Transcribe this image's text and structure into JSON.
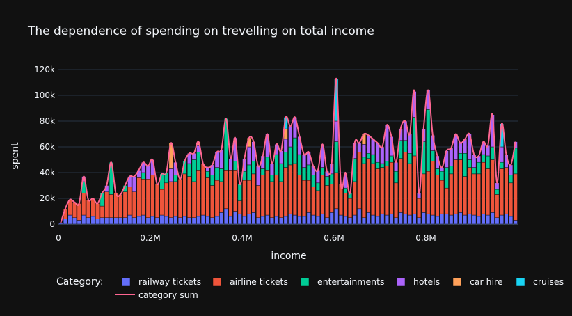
{
  "chart_data": {
    "type": "bar",
    "stacked": true,
    "title": "The dependence of spending on trevelling on total income",
    "xlabel": "income",
    "ylabel": "spent",
    "xlim": [
      0,
      1000000
    ],
    "ylim": [
      0,
      120000
    ],
    "xticks": [
      0,
      200000,
      400000,
      600000,
      800000
    ],
    "xtick_labels": [
      "0",
      "0.2M",
      "0.4M",
      "0.6M",
      "0.8M"
    ],
    "yticks": [
      0,
      20000,
      40000,
      60000,
      80000,
      100000,
      120000
    ],
    "ytick_labels": [
      "0",
      "20k",
      "40k",
      "60k",
      "80k",
      "100k",
      "120k"
    ],
    "grid": "horizontal",
    "legend": {
      "title": "Category:",
      "placement": "bottom",
      "entries": [
        "railway tickets",
        "airline tickets",
        "entertainments",
        "hotels",
        "car hire",
        "cruises",
        "category sum"
      ]
    },
    "colors": {
      "railway tickets": "#636efa",
      "airline tickets": "#ef553b",
      "entertainments": "#00cc96",
      "hotels": "#ab63fa",
      "car hire": "#ffa15a",
      "cruises": "#19d3f3",
      "category sum": "#ff6692"
    },
    "bar_width": 10000,
    "x": [
      0,
      10000,
      20000,
      30000,
      40000,
      50000,
      60000,
      70000,
      80000,
      90000,
      100000,
      110000,
      120000,
      130000,
      140000,
      150000,
      160000,
      170000,
      180000,
      190000,
      200000,
      210000,
      220000,
      230000,
      240000,
      250000,
      260000,
      270000,
      280000,
      290000,
      300000,
      310000,
      320000,
      330000,
      340000,
      350000,
      360000,
      370000,
      380000,
      390000,
      400000,
      410000,
      420000,
      430000,
      440000,
      450000,
      460000,
      470000,
      480000,
      490000,
      500000,
      510000,
      520000,
      530000,
      540000,
      550000,
      560000,
      570000,
      580000,
      590000,
      600000,
      610000,
      620000,
      630000,
      640000,
      650000,
      660000,
      670000,
      680000,
      690000,
      700000,
      710000,
      720000,
      730000,
      740000,
      750000,
      760000,
      770000,
      780000,
      790000,
      800000,
      810000,
      820000,
      830000,
      840000,
      850000,
      860000,
      870000,
      880000,
      890000,
      900000,
      910000,
      920000,
      930000,
      940000,
      950000,
      960000,
      970000,
      980000,
      990000
    ],
    "series": [
      {
        "name": "railway tickets",
        "values": [
          1000,
          4000,
          7000,
          5000,
          3000,
          7000,
          5000,
          6000,
          4000,
          5000,
          5000,
          5000,
          5000,
          5000,
          5000,
          7000,
          5000,
          6000,
          7000,
          5000,
          6000,
          5000,
          7000,
          6000,
          5000,
          6000,
          5000,
          6000,
          5000,
          5000,
          6000,
          7000,
          6000,
          5000,
          6000,
          9000,
          12000,
          6000,
          10000,
          8000,
          6000,
          8000,
          9000,
          5000,
          6000,
          7000,
          5000,
          6000,
          5000,
          6000,
          8000,
          7000,
          6000,
          6000,
          9000,
          7000,
          6000,
          8000,
          5000,
          9000,
          12000,
          7000,
          6000,
          5000,
          7000,
          12000,
          5000,
          9000,
          7000,
          6000,
          8000,
          7000,
          8000,
          5000,
          9000,
          8000,
          7000,
          8000,
          5000,
          9000,
          8000,
          7000,
          6000,
          8000,
          8000,
          7000,
          8000,
          9000,
          7000,
          8000,
          7000,
          6000,
          8000,
          7000,
          9000,
          5000,
          7000,
          8000,
          6000,
          3000
        ]
      },
      {
        "name": "airline tickets",
        "values": [
          0,
          8000,
          12000,
          12000,
          13000,
          17000,
          14000,
          14000,
          12000,
          9000,
          20000,
          18000,
          19000,
          18000,
          20000,
          22000,
          20000,
          30000,
          28000,
          30000,
          32000,
          26000,
          20000,
          26000,
          28000,
          27000,
          30000,
          33000,
          32000,
          28000,
          36000,
          40000,
          30000,
          25000,
          28000,
          24000,
          30000,
          36000,
          32000,
          10000,
          28000,
          26000,
          30000,
          25000,
          32000,
          35000,
          28000,
          32000,
          28000,
          38000,
          38000,
          40000,
          32000,
          28000,
          25000,
          22000,
          20000,
          30000,
          25000,
          22000,
          28000,
          24000,
          18000,
          15000,
          26000,
          44000,
          42000,
          42000,
          40000,
          37000,
          36000,
          38000,
          40000,
          27000,
          42000,
          48000,
          40000,
          45000,
          15000,
          30000,
          33000,
          42000,
          32000,
          26000,
          20000,
          32000,
          42000,
          41000,
          30000,
          36000,
          32000,
          33000,
          40000,
          36000,
          41000,
          18000,
          36000,
          36000,
          26000,
          36000
        ]
      },
      {
        "name": "entertainments",
        "values": [
          0,
          0,
          0,
          0,
          0,
          9000,
          0,
          0,
          0,
          10000,
          0,
          25000,
          0,
          0,
          5000,
          0,
          0,
          0,
          5000,
          0,
          0,
          0,
          12000,
          8000,
          0,
          5000,
          0,
          10000,
          10000,
          17000,
          14000,
          0,
          5000,
          8000,
          10000,
          10000,
          40000,
          0,
          7000,
          13000,
          7000,
          12000,
          10000,
          0,
          5000,
          10000,
          5000,
          16000,
          14000,
          12000,
          14000,
          20000,
          16000,
          10000,
          12000,
          9000,
          6000,
          6000,
          7000,
          8000,
          24000,
          0,
          4000,
          4000,
          18000,
          0,
          5000,
          4000,
          7000,
          5000,
          3000,
          4000,
          5000,
          9000,
          14000,
          9000,
          8000,
          30000,
          0,
          25000,
          48000,
          8000,
          5000,
          7000,
          16000,
          6000,
          0,
          5000,
          18000,
          6000,
          5000,
          9000,
          6000,
          10000,
          10000,
          4000,
          5000,
          0,
          6000,
          20000
        ]
      },
      {
        "name": "hotels",
        "values": [
          0,
          0,
          0,
          0,
          0,
          4000,
          0,
          0,
          0,
          0,
          5000,
          0,
          0,
          0,
          0,
          8000,
          12000,
          6000,
          8000,
          10000,
          12000,
          0,
          0,
          0,
          10000,
          10000,
          0,
          0,
          8000,
          5000,
          5000,
          0,
          3000,
          8000,
          12000,
          15000,
          0,
          9000,
          18000,
          0,
          10000,
          14000,
          15000,
          15000,
          10000,
          18000,
          9000,
          8000,
          10000,
          10000,
          16000,
          16000,
          14000,
          10000,
          10000,
          7000,
          10000,
          18000,
          4000,
          8000,
          16000,
          0,
          12000,
          0,
          12000,
          7000,
          10000,
          14000,
          12000,
          15000,
          13000,
          28000,
          15000,
          7000,
          9000,
          15000,
          15000,
          20000,
          4000,
          10000,
          15000,
          12000,
          10000,
          3000,
          13000,
          14000,
          20000,
          8000,
          11000,
          20000,
          10000,
          5000,
          10000,
          8000,
          25000,
          5000,
          12000,
          10000,
          8000,
          5000
        ]
      },
      {
        "name": "car hire",
        "values": [
          0,
          0,
          0,
          0,
          0,
          0,
          0,
          0,
          0,
          0,
          0,
          0,
          0,
          0,
          0,
          0,
          0,
          0,
          0,
          0,
          0,
          0,
          0,
          0,
          20000,
          0,
          0,
          0,
          0,
          0,
          3000,
          0,
          0,
          0,
          0,
          0,
          0,
          0,
          0,
          0,
          0,
          7000,
          0,
          0,
          0,
          0,
          0,
          0,
          0,
          8000,
          0,
          0,
          0,
          0,
          0,
          0,
          0,
          0,
          0,
          0,
          0,
          0,
          0,
          0,
          0,
          0,
          8000,
          0,
          0,
          0,
          0,
          0,
          0,
          0,
          0,
          0,
          0,
          0,
          0,
          0,
          0,
          0,
          0,
          0,
          0,
          0,
          0,
          0,
          0,
          0,
          0,
          0,
          0,
          0,
          0,
          0,
          0,
          0,
          0,
          0
        ]
      },
      {
        "name": "cruises",
        "values": [
          0,
          0,
          0,
          0,
          0,
          0,
          0,
          0,
          0,
          0,
          0,
          0,
          0,
          0,
          0,
          0,
          0,
          0,
          0,
          0,
          0,
          0,
          0,
          0,
          0,
          0,
          0,
          0,
          0,
          0,
          0,
          0,
          0,
          0,
          0,
          0,
          0,
          0,
          0,
          0,
          0,
          0,
          0,
          0,
          0,
          0,
          0,
          0,
          0,
          9000,
          0,
          0,
          0,
          0,
          0,
          0,
          0,
          0,
          0,
          0,
          33000,
          0,
          0,
          0,
          0,
          0,
          0,
          0,
          0,
          0,
          0,
          0,
          0,
          0,
          0,
          0,
          0,
          0,
          0,
          0,
          0,
          0,
          0,
          0,
          0,
          0,
          0,
          0,
          0,
          0,
          0,
          0,
          0,
          0,
          0,
          0,
          18000,
          0,
          0,
          0
        ]
      }
    ],
    "line": {
      "name": "category sum",
      "type": "spline",
      "values": "sum of series per x"
    }
  }
}
